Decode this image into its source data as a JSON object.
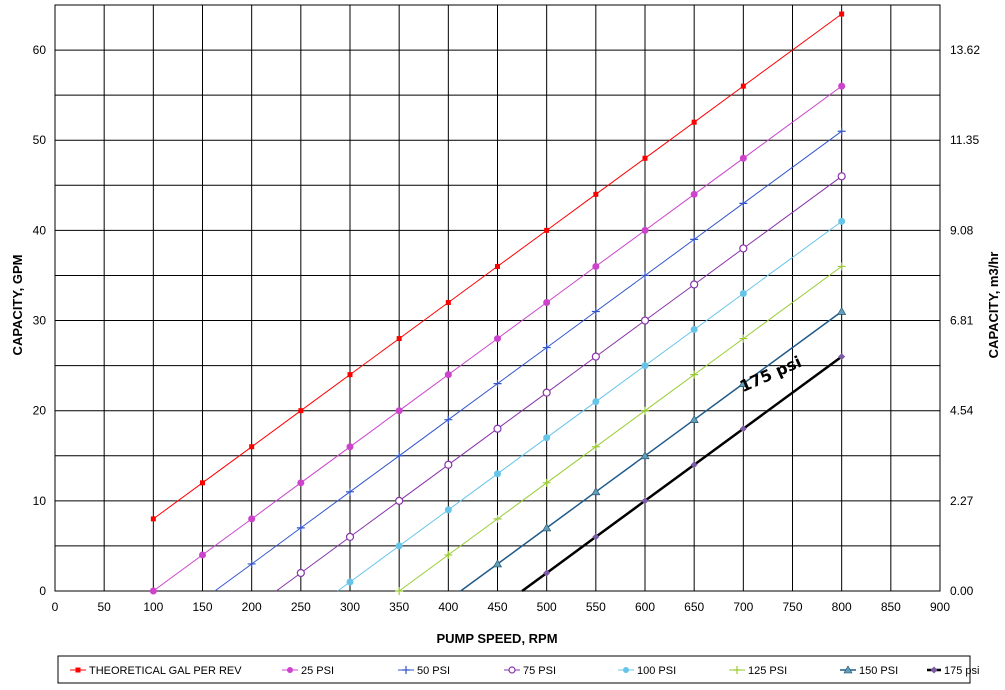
{
  "chart_data": {
    "type": "line",
    "xlabel": "PUMP SPEED, RPM",
    "ylabel": "CAPACITY, GPM",
    "y2label": "CAPACITY, m3/hr",
    "xlim": [
      0,
      900
    ],
    "ylim": [
      0,
      65
    ],
    "grid": true,
    "legend_position": "bottom",
    "x_ticks": [
      "0",
      "50",
      "100",
      "150",
      "200",
      "250",
      "300",
      "350",
      "400",
      "450",
      "500",
      "550",
      "600",
      "650",
      "700",
      "750",
      "800",
      "850",
      "900"
    ],
    "y_ticks": [
      "0",
      "10",
      "20",
      "30",
      "40",
      "50",
      "60"
    ],
    "y2_ticks": [
      {
        "label": "0.00",
        "at": 0
      },
      {
        "label": "2.27",
        "at": 10
      },
      {
        "label": "4.54",
        "at": 20
      },
      {
        "label": "6.81",
        "at": 30
      },
      {
        "label": "9.08",
        "at": 40
      },
      {
        "label": "11.35",
        "at": 50
      },
      {
        "label": "13.62",
        "at": 60
      }
    ],
    "series": [
      {
        "name": "THEORETICAL GAL PER REV",
        "color": "#ff0000",
        "marker": "square",
        "width": 1,
        "x": [
          100,
          150,
          200,
          250,
          300,
          350,
          400,
          450,
          500,
          550,
          600,
          650,
          700,
          800
        ],
        "y": [
          8,
          12,
          16,
          20,
          24,
          28,
          32,
          36,
          40,
          44,
          48,
          52,
          56,
          64
        ]
      },
      {
        "name": "25 PSI",
        "color": "#cc44cc",
        "marker": "circle",
        "width": 1,
        "x": [
          100,
          150,
          200,
          250,
          300,
          350,
          400,
          450,
          500,
          550,
          600,
          650,
          700,
          800
        ],
        "y": [
          0,
          4,
          8,
          12,
          16,
          20,
          24,
          28,
          32,
          36,
          40,
          44,
          48,
          56
        ]
      },
      {
        "name": "50 PSI",
        "color": "#3355cc",
        "marker": "plus",
        "width": 1,
        "x": [
          162.5,
          200,
          250,
          300,
          350,
          400,
          450,
          500,
          550,
          600,
          650,
          700,
          800
        ],
        "y": [
          0,
          3,
          7,
          11,
          15,
          19,
          23,
          27,
          31,
          35,
          39,
          43,
          51
        ]
      },
      {
        "name": "75 PSI",
        "color": "#8833aa",
        "marker": "open-circle",
        "width": 1,
        "x": [
          225,
          250,
          300,
          350,
          400,
          450,
          500,
          550,
          600,
          650,
          700,
          800
        ],
        "y": [
          0,
          2,
          6,
          10,
          14,
          18,
          22,
          26,
          30,
          34,
          38,
          46
        ]
      },
      {
        "name": "100 PSI",
        "color": "#66c4e8",
        "marker": "circle",
        "width": 1,
        "x": [
          287.5,
          300,
          350,
          400,
          450,
          500,
          550,
          600,
          650,
          700,
          800
        ],
        "y": [
          0,
          1,
          5,
          9,
          13,
          17,
          21,
          25,
          29,
          33,
          41
        ]
      },
      {
        "name": "125 PSI",
        "color": "#99cc33",
        "marker": "plus",
        "width": 1,
        "x": [
          350,
          400,
          450,
          500,
          550,
          600,
          650,
          700,
          800
        ],
        "y": [
          0,
          4,
          8,
          12,
          16,
          20,
          24,
          28,
          36
        ]
      },
      {
        "name": "150 PSI",
        "color": "#1f5a8a",
        "marker": "triangle",
        "width": 1.5,
        "x": [
          412.5,
          450,
          500,
          550,
          600,
          650,
          700,
          800
        ],
        "y": [
          0,
          3,
          7,
          11,
          15,
          19,
          23,
          31
        ]
      },
      {
        "name": "175 psi",
        "color": "#000000",
        "marker": "diamond",
        "width": 2.5,
        "x": [
          475,
          500,
          550,
          600,
          650,
          700,
          800
        ],
        "y": [
          0,
          2,
          6,
          10,
          14,
          18,
          26
        ]
      }
    ],
    "annotations": [
      {
        "text": "175 psi",
        "x": 730,
        "y": 23.5
      }
    ]
  }
}
